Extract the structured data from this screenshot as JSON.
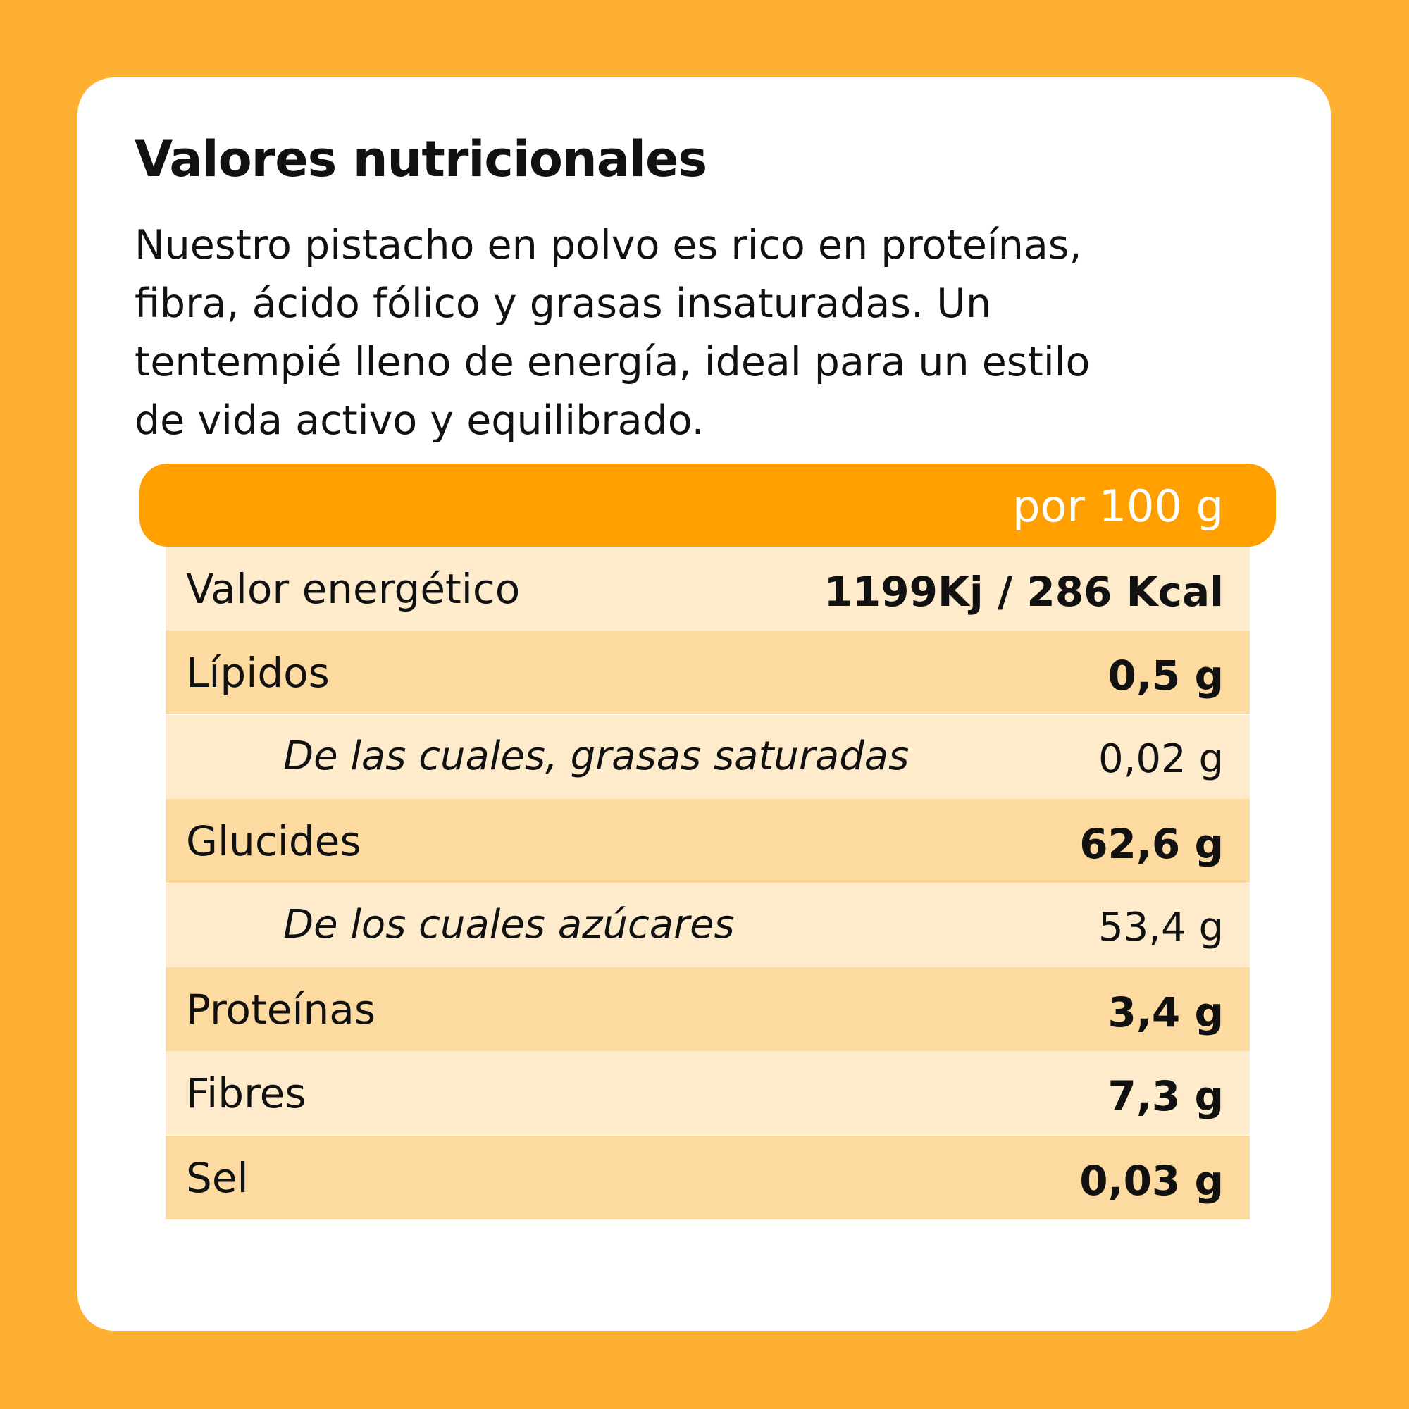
{
  "header": {
    "title": "Valores nutricionales",
    "description_lines": [
      "Nuestro pistacho en polvo es rico en proteínas,",
      "fibra, ácido fólico y grasas insaturadas. Un",
      "tentempié lleno de energía, ideal para un estilo",
      "de vida activo y equilibrado."
    ]
  },
  "table": {
    "column_header": "por 100 g",
    "rows": [
      {
        "label": "Valor energético",
        "value": "1199Kj / 286 Kcal"
      },
      {
        "label": "Lípidos",
        "value": "0,5 g"
      },
      {
        "label": "De las cuales, grasas saturadas",
        "value": "0,02 g"
      },
      {
        "label": "Glucides",
        "value": "62,6 g"
      },
      {
        "label": "De los cuales azúcares",
        "value": "53,4 g"
      },
      {
        "label": "Proteínas",
        "value": "3,4 g"
      },
      {
        "label": "Fibres",
        "value": "7,3 g"
      },
      {
        "label": "Sel",
        "value": "0,03 g"
      }
    ]
  }
}
